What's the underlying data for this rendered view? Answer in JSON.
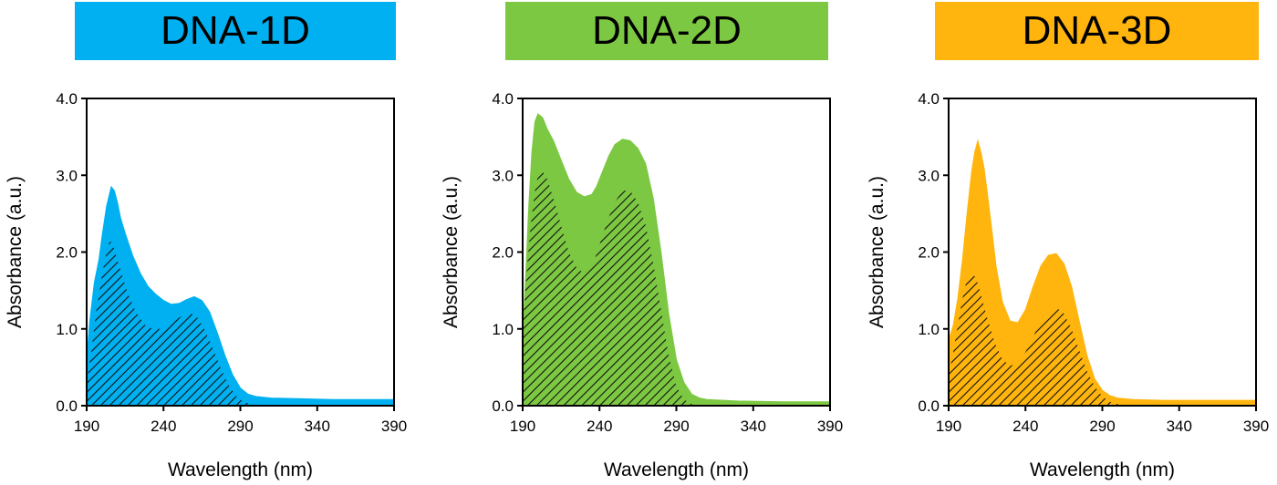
{
  "chart_data": [
    {
      "type": "area",
      "title": "DNA-1D",
      "color": "#00B0F0",
      "xlabel": "Wavelength (nm)",
      "ylabel": "Absorbance (a.u.)",
      "xlim": [
        190,
        390
      ],
      "ylim": [
        0,
        4
      ],
      "xticks": [
        "190",
        "240",
        "290",
        "340",
        "390"
      ],
      "yticks": [
        "0.0",
        "1.0",
        "2.0",
        "3.0",
        "4.0"
      ],
      "series": [
        {
          "style": "filled",
          "x": [
            190,
            192,
            195,
            198,
            200,
            203,
            206,
            208,
            210,
            212,
            215,
            220,
            225,
            230,
            235,
            240,
            245,
            250,
            255,
            260,
            265,
            270,
            275,
            280,
            285,
            290,
            295,
            300,
            310,
            330,
            350,
            370,
            390
          ],
          "y": [
            0.6,
            1.1,
            1.6,
            1.9,
            2.2,
            2.6,
            2.85,
            2.8,
            2.65,
            2.45,
            2.25,
            1.95,
            1.72,
            1.55,
            1.45,
            1.37,
            1.32,
            1.33,
            1.38,
            1.42,
            1.37,
            1.22,
            0.95,
            0.65,
            0.4,
            0.23,
            0.15,
            0.12,
            0.1,
            0.09,
            0.08,
            0.08,
            0.08
          ]
        },
        {
          "style": "hatched",
          "x": [
            190,
            193,
            196,
            200,
            203,
            205,
            207,
            210,
            213,
            217,
            222,
            228,
            233,
            238,
            243,
            248,
            253,
            258,
            262,
            267,
            272,
            277,
            282,
            287,
            292,
            297,
            300,
            310,
            390
          ],
          "y": [
            0.3,
            0.7,
            1.2,
            1.7,
            2.0,
            2.15,
            2.1,
            1.9,
            1.7,
            1.45,
            1.22,
            1.05,
            1.0,
            1.0,
            1.05,
            1.12,
            1.18,
            1.2,
            1.15,
            0.98,
            0.75,
            0.5,
            0.28,
            0.13,
            0.05,
            0.02,
            0.0,
            0.0,
            0.0
          ]
        }
      ]
    },
    {
      "type": "area",
      "title": "DNA-2D",
      "color": "#7DC842",
      "xlabel": "Wavelength (nm)",
      "ylabel": "Absorbance (a.u.)",
      "xlim": [
        190,
        390
      ],
      "ylim": [
        0,
        4
      ],
      "xticks": [
        "190",
        "240",
        "290",
        "340",
        "390"
      ],
      "yticks": [
        "0.0",
        "1.0",
        "2.0",
        "3.0",
        "4.0"
      ],
      "series": [
        {
          "style": "filled",
          "x": [
            190,
            192,
            194,
            196,
            198,
            200,
            203,
            206,
            210,
            215,
            220,
            225,
            230,
            235,
            238,
            242,
            246,
            250,
            255,
            260,
            265,
            270,
            275,
            280,
            285,
            290,
            295,
            300,
            305,
            310,
            330,
            360,
            390
          ],
          "y": [
            0.9,
            1.7,
            2.6,
            3.3,
            3.7,
            3.8,
            3.75,
            3.6,
            3.45,
            3.2,
            2.95,
            2.78,
            2.72,
            2.75,
            2.85,
            3.05,
            3.25,
            3.4,
            3.47,
            3.45,
            3.35,
            3.15,
            2.7,
            2.0,
            1.2,
            0.6,
            0.3,
            0.15,
            0.1,
            0.08,
            0.06,
            0.05,
            0.05
          ]
        },
        {
          "style": "hatched",
          "x": [
            190,
            192,
            195,
            198,
            200,
            203,
            206,
            210,
            215,
            220,
            225,
            230,
            233,
            236,
            240,
            245,
            250,
            255,
            260,
            265,
            270,
            275,
            280,
            285,
            290,
            295,
            300,
            310,
            390
          ],
          "y": [
            1.0,
            1.6,
            2.3,
            2.8,
            3.0,
            3.05,
            2.95,
            2.7,
            2.35,
            2.0,
            1.8,
            1.72,
            1.75,
            1.85,
            2.1,
            2.4,
            2.65,
            2.8,
            2.8,
            2.65,
            2.35,
            1.85,
            1.25,
            0.65,
            0.25,
            0.08,
            0.02,
            0.0,
            0.0
          ]
        }
      ]
    },
    {
      "type": "area",
      "title": "DNA-3D",
      "color": "#FFB50D",
      "xlabel": "Wavelength (nm)",
      "ylabel": "Absorbance (a.u.)",
      "xlim": [
        190,
        390
      ],
      "ylim": [
        0,
        4
      ],
      "xticks": [
        "190",
        "240",
        "290",
        "340",
        "390"
      ],
      "yticks": [
        "0.0",
        "1.0",
        "2.0",
        "3.0",
        "4.0"
      ],
      "series": [
        {
          "style": "filled",
          "x": [
            190,
            193,
            196,
            199,
            202,
            205,
            207,
            209,
            211,
            213,
            215,
            218,
            221,
            225,
            230,
            235,
            240,
            245,
            250,
            255,
            260,
            265,
            270,
            275,
            280,
            285,
            290,
            295,
            300,
            310,
            330,
            360,
            390
          ],
          "y": [
            0.85,
            1.05,
            1.4,
            1.9,
            2.5,
            3.05,
            3.3,
            3.45,
            3.3,
            3.1,
            2.8,
            2.3,
            1.8,
            1.35,
            1.1,
            1.08,
            1.25,
            1.55,
            1.82,
            1.96,
            1.98,
            1.85,
            1.55,
            1.1,
            0.65,
            0.35,
            0.2,
            0.13,
            0.1,
            0.08,
            0.07,
            0.07,
            0.07
          ]
        },
        {
          "style": "hatched",
          "x": [
            190,
            193,
            196,
            199,
            202,
            205,
            208,
            211,
            215,
            220,
            225,
            230,
            235,
            240,
            245,
            250,
            255,
            260,
            265,
            270,
            275,
            280,
            285,
            290,
            295,
            300,
            310,
            390
          ],
          "y": [
            0.4,
            0.7,
            1.05,
            1.4,
            1.65,
            1.75,
            1.65,
            1.45,
            1.15,
            0.82,
            0.6,
            0.52,
            0.55,
            0.7,
            0.9,
            1.1,
            1.22,
            1.28,
            1.2,
            1.0,
            0.72,
            0.45,
            0.25,
            0.12,
            0.05,
            0.02,
            0.0,
            0.0
          ]
        }
      ]
    }
  ]
}
